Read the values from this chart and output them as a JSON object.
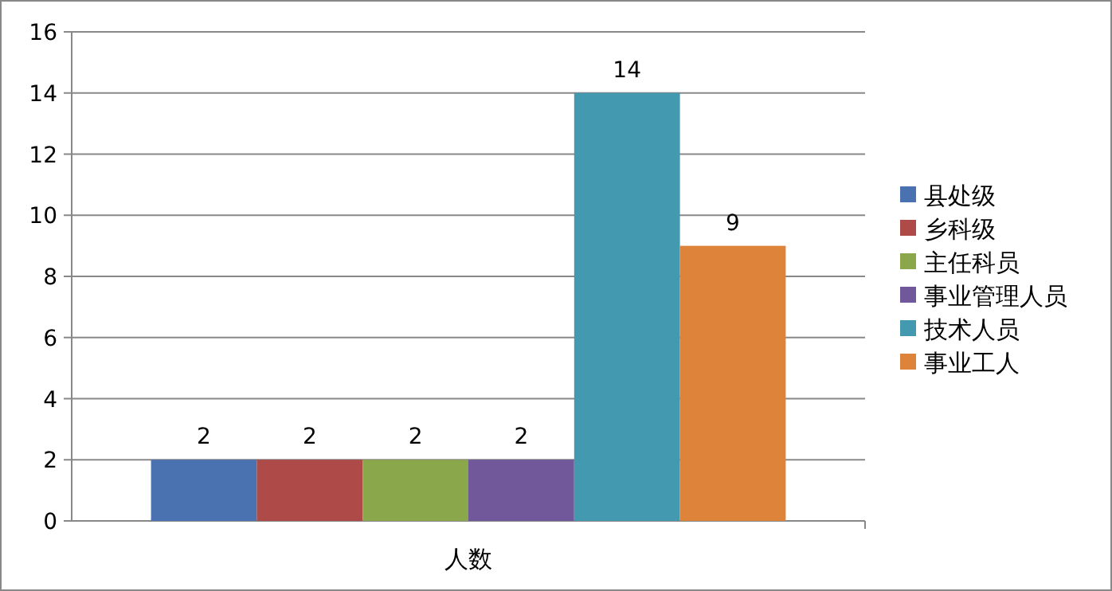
{
  "chart_data": {
    "type": "bar",
    "categories": [
      "人数"
    ],
    "series": [
      {
        "name": "县处级",
        "color": "#4a72b0",
        "values": [
          2
        ]
      },
      {
        "name": "乡科级",
        "color": "#ae4a47",
        "values": [
          2
        ]
      },
      {
        "name": "主任科员",
        "color": "#8aa84b",
        "values": [
          2
        ]
      },
      {
        "name": "事业管理人员",
        "color": "#71589a",
        "values": [
          2
        ]
      },
      {
        "name": "技术人员",
        "color": "#4299b0",
        "values": [
          14
        ]
      },
      {
        "name": "事业工人",
        "color": "#de843a",
        "values": [
          9
        ]
      }
    ],
    "ylim": [
      0,
      16
    ],
    "yticks": [
      0,
      2,
      4,
      6,
      8,
      10,
      12,
      14,
      16
    ],
    "grid": "y",
    "legend": "right",
    "data_labels": true
  }
}
